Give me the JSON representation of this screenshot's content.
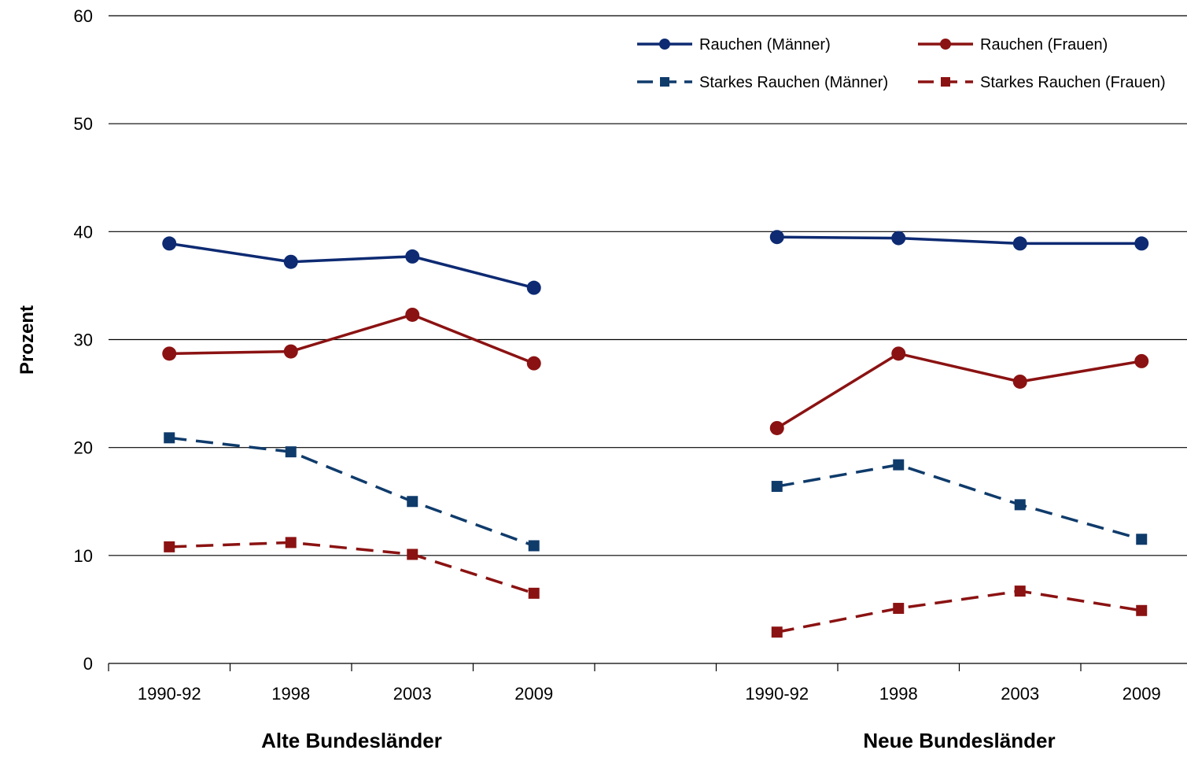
{
  "chart_data": {
    "type": "line",
    "ylabel": "Prozent",
    "ylim": [
      0,
      60
    ],
    "yticks": [
      0,
      10,
      20,
      30,
      40,
      50,
      60
    ],
    "grid": true,
    "legend_position": "top-right",
    "groups": [
      {
        "label": "Alte Bundesländer",
        "categories": [
          "1990-92",
          "1998",
          "2003",
          "2009"
        ],
        "series": [
          {
            "name": "Rauchen (Männer)",
            "values": [
              38.9,
              37.2,
              37.7,
              34.8
            ]
          },
          {
            "name": "Rauchen (Frauen)",
            "values": [
              28.7,
              28.9,
              32.3,
              27.8
            ]
          },
          {
            "name": "Starkes Rauchen (Männer)",
            "values": [
              20.9,
              19.6,
              15.0,
              10.9
            ]
          },
          {
            "name": "Starkes Rauchen (Frauen)",
            "values": [
              10.8,
              11.2,
              10.1,
              6.5
            ]
          }
        ]
      },
      {
        "label": "Neue Bundesländer",
        "categories": [
          "1990-92",
          "1998",
          "2003",
          "2009"
        ],
        "series": [
          {
            "name": "Rauchen (Männer)",
            "values": [
              39.5,
              39.4,
              38.9,
              38.9
            ]
          },
          {
            "name": "Rauchen (Frauen)",
            "values": [
              21.8,
              28.7,
              26.1,
              28.0
            ]
          },
          {
            "name": "Starkes Rauchen (Männer)",
            "values": [
              16.4,
              18.4,
              14.7,
              11.5
            ]
          },
          {
            "name": "Starkes Rauchen (Frauen)",
            "values": [
              2.9,
              5.1,
              6.7,
              4.9
            ]
          }
        ]
      }
    ],
    "series_styles": [
      {
        "color": "#0d2a72",
        "line": "solid",
        "marker": "circle"
      },
      {
        "color": "#8b1212",
        "line": "solid",
        "marker": "circle"
      },
      {
        "color": "#0f3b6b",
        "line": "dashed",
        "marker": "square"
      },
      {
        "color": "#8b1212",
        "line": "dashed",
        "marker": "square"
      }
    ]
  }
}
